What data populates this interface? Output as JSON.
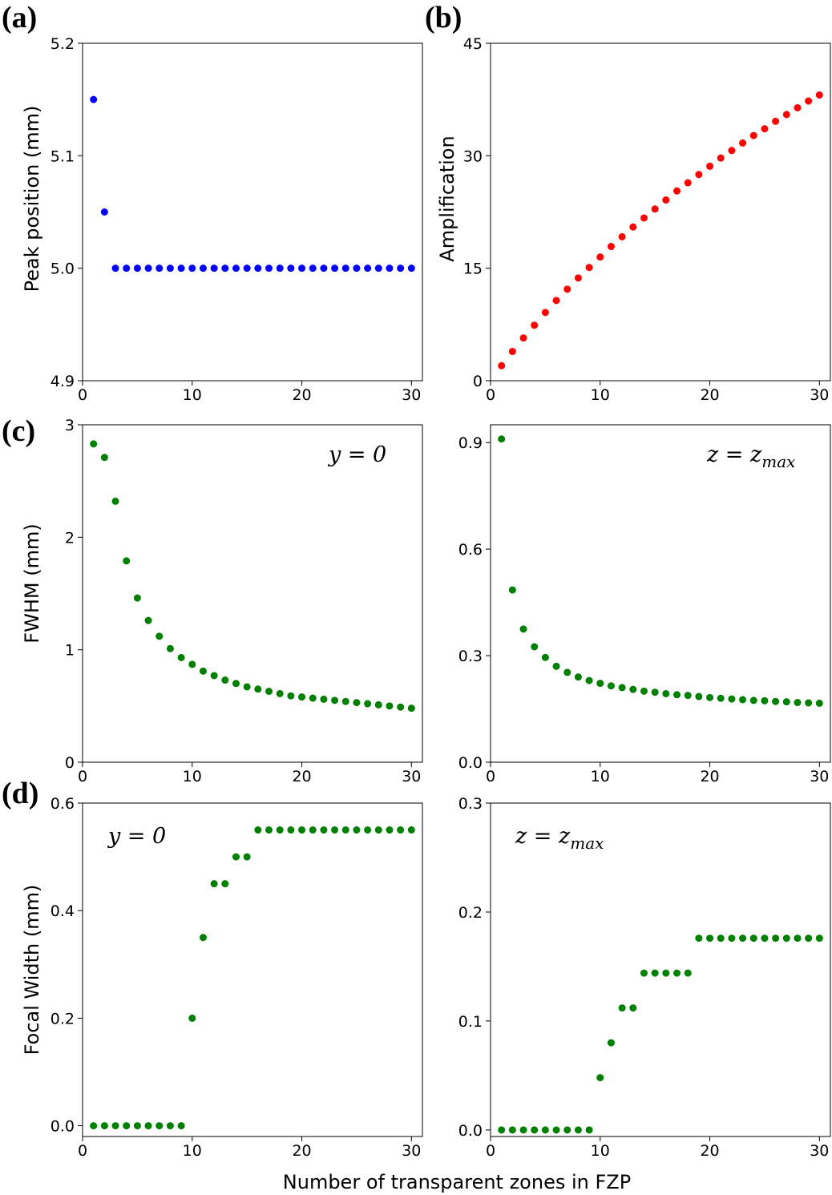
{
  "figure": {
    "xlabel": "Number of transparent zones in FZP"
  },
  "chart_data": [
    {
      "id": "a",
      "panel_label": "(a)",
      "type": "scatter",
      "ylabel": "Peak position (mm)",
      "annotation": {
        "main": "",
        "sub": ""
      },
      "color": "#0000ff",
      "xlim": [
        0,
        31
      ],
      "ylim": [
        4.9,
        5.2
      ],
      "xticks": [
        0,
        10,
        20,
        30
      ],
      "yticks": [
        4.9,
        5.0,
        5.1,
        5.2
      ],
      "ytick_labels": [
        "4.9",
        "5.0",
        "5.1",
        "5.2"
      ],
      "x": [
        1,
        2,
        3,
        4,
        5,
        6,
        7,
        8,
        9,
        10,
        11,
        12,
        13,
        14,
        15,
        16,
        17,
        18,
        19,
        20,
        21,
        22,
        23,
        24,
        25,
        26,
        27,
        28,
        29,
        30
      ],
      "y": [
        5.15,
        5.05,
        5.0,
        5.0,
        5.0,
        5.0,
        5.0,
        5.0,
        5.0,
        5.0,
        5.0,
        5.0,
        5.0,
        5.0,
        5.0,
        5.0,
        5.0,
        5.0,
        5.0,
        5.0,
        5.0,
        5.0,
        5.0,
        5.0,
        5.0,
        5.0,
        5.0,
        5.0,
        5.0,
        5.0
      ]
    },
    {
      "id": "b",
      "panel_label": "(b)",
      "type": "scatter",
      "ylabel": "Amplification",
      "annotation": {
        "main": "",
        "sub": ""
      },
      "color": "#ff0000",
      "xlim": [
        0,
        31
      ],
      "ylim": [
        0,
        45
      ],
      "xticks": [
        0,
        10,
        20,
        30
      ],
      "yticks": [
        0,
        15,
        30,
        45
      ],
      "ytick_labels": [
        "0",
        "15",
        "30",
        "45"
      ],
      "x": [
        1,
        2,
        3,
        4,
        5,
        6,
        7,
        8,
        9,
        10,
        11,
        12,
        13,
        14,
        15,
        16,
        17,
        18,
        19,
        20,
        21,
        22,
        23,
        24,
        25,
        26,
        27,
        28,
        29,
        30
      ],
      "y": [
        2.0,
        3.9,
        5.7,
        7.4,
        9.1,
        10.7,
        12.2,
        13.7,
        15.1,
        16.5,
        17.9,
        19.2,
        20.5,
        21.7,
        22.9,
        24.1,
        25.3,
        26.4,
        27.5,
        28.6,
        29.7,
        30.7,
        31.7,
        32.7,
        33.6,
        34.6,
        35.5,
        36.4,
        37.3,
        38.1
      ]
    },
    {
      "id": "c-left",
      "panel_label": "(c)",
      "type": "scatter",
      "ylabel": "FWHM (mm)",
      "annotation": {
        "main": "y = 0",
        "sub": ""
      },
      "color": "#008000",
      "xlim": [
        0,
        31
      ],
      "ylim": [
        0,
        3
      ],
      "xticks": [
        0,
        10,
        20,
        30
      ],
      "yticks": [
        0,
        1,
        2,
        3
      ],
      "ytick_labels": [
        "0",
        "1",
        "2",
        "3"
      ],
      "x": [
        1,
        2,
        3,
        4,
        5,
        6,
        7,
        8,
        9,
        10,
        11,
        12,
        13,
        14,
        15,
        16,
        17,
        18,
        19,
        20,
        21,
        22,
        23,
        24,
        25,
        26,
        27,
        28,
        29,
        30
      ],
      "y": [
        2.83,
        2.71,
        2.32,
        1.79,
        1.46,
        1.26,
        1.12,
        1.01,
        0.93,
        0.87,
        0.81,
        0.77,
        0.73,
        0.7,
        0.67,
        0.65,
        0.63,
        0.61,
        0.59,
        0.58,
        0.57,
        0.56,
        0.55,
        0.54,
        0.53,
        0.52,
        0.51,
        0.5,
        0.49,
        0.48
      ]
    },
    {
      "id": "c-right",
      "panel_label": "",
      "type": "scatter",
      "ylabel": "",
      "annotation": {
        "main": "z = z",
        "sub": "max"
      },
      "color": "#008000",
      "xlim": [
        0,
        31
      ],
      "ylim": [
        0,
        0.95
      ],
      "xticks": [
        0,
        10,
        20,
        30
      ],
      "yticks": [
        0,
        0.3,
        0.6,
        0.9
      ],
      "ytick_labels": [
        "0.0",
        "0.3",
        "0.6",
        "0.9"
      ],
      "x": [
        1,
        2,
        3,
        4,
        5,
        6,
        7,
        8,
        9,
        10,
        11,
        12,
        13,
        14,
        15,
        16,
        17,
        18,
        19,
        20,
        21,
        22,
        23,
        24,
        25,
        26,
        27,
        28,
        29,
        30
      ],
      "y": [
        0.91,
        0.485,
        0.375,
        0.325,
        0.295,
        0.27,
        0.253,
        0.24,
        0.23,
        0.222,
        0.215,
        0.21,
        0.205,
        0.2,
        0.197,
        0.193,
        0.19,
        0.188,
        0.185,
        0.182,
        0.18,
        0.178,
        0.176,
        0.174,
        0.173,
        0.171,
        0.17,
        0.168,
        0.167,
        0.166
      ]
    },
    {
      "id": "d-left",
      "panel_label": "(d)",
      "type": "scatter",
      "ylabel": "Focal Width (mm)",
      "annotation": {
        "main": "y = 0",
        "sub": ""
      },
      "color": "#008000",
      "xlim": [
        0,
        31
      ],
      "ylim": [
        -0.02,
        0.6
      ],
      "xticks": [
        0,
        10,
        20,
        30
      ],
      "yticks": [
        0,
        0.2,
        0.4,
        0.6
      ],
      "ytick_labels": [
        "0.0",
        "0.2",
        "0.4",
        "0.6"
      ],
      "x": [
        1,
        2,
        3,
        4,
        5,
        6,
        7,
        8,
        9,
        10,
        11,
        12,
        13,
        14,
        15,
        16,
        17,
        18,
        19,
        20,
        21,
        22,
        23,
        24,
        25,
        26,
        27,
        28,
        29,
        30
      ],
      "y": [
        0,
        0,
        0,
        0,
        0,
        0,
        0,
        0,
        0,
        0.2,
        0.35,
        0.45,
        0.45,
        0.5,
        0.5,
        0.55,
        0.55,
        0.55,
        0.55,
        0.55,
        0.55,
        0.55,
        0.55,
        0.55,
        0.55,
        0.55,
        0.55,
        0.55,
        0.55,
        0.55
      ]
    },
    {
      "id": "d-right",
      "panel_label": "",
      "type": "scatter",
      "ylabel": "",
      "annotation": {
        "main": "z = z",
        "sub": "max"
      },
      "color": "#008000",
      "xlim": [
        0,
        31
      ],
      "ylim": [
        -0.006,
        0.3
      ],
      "xticks": [
        0,
        10,
        20,
        30
      ],
      "yticks": [
        0,
        0.1,
        0.2,
        0.3
      ],
      "ytick_labels": [
        "0.0",
        "0.1",
        "0.2",
        "0.3"
      ],
      "x": [
        1,
        2,
        3,
        4,
        5,
        6,
        7,
        8,
        9,
        10,
        11,
        12,
        13,
        14,
        15,
        16,
        17,
        18,
        19,
        20,
        21,
        22,
        23,
        24,
        25,
        26,
        27,
        28,
        29,
        30
      ],
      "y": [
        0,
        0,
        0,
        0,
        0,
        0,
        0,
        0,
        0,
        0.048,
        0.08,
        0.112,
        0.112,
        0.144,
        0.144,
        0.144,
        0.144,
        0.144,
        0.176,
        0.176,
        0.176,
        0.176,
        0.176,
        0.176,
        0.176,
        0.176,
        0.176,
        0.176,
        0.176,
        0.176
      ]
    }
  ]
}
